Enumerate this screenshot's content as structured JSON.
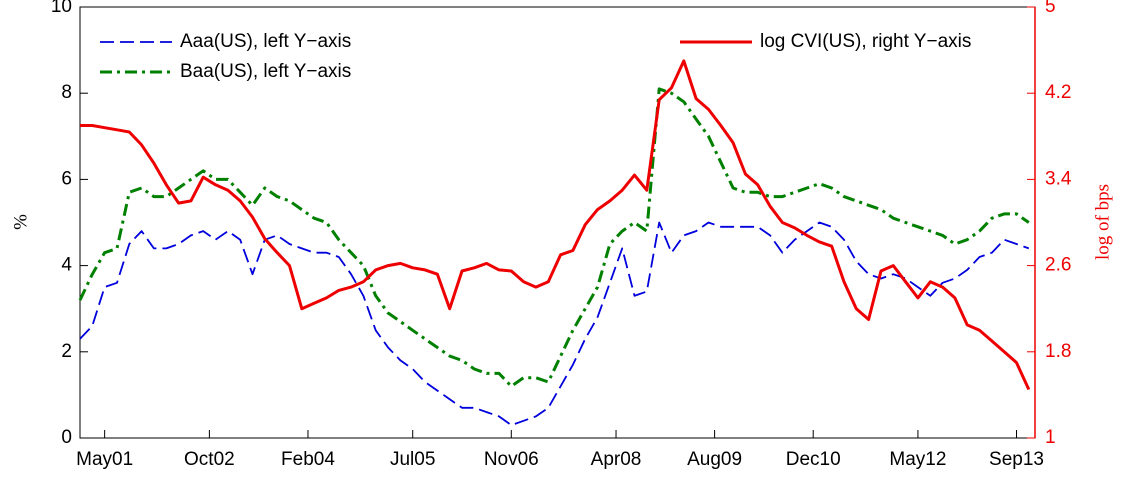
{
  "chart_data": {
    "type": "line",
    "x": [
      "2001-01",
      "2001-03",
      "2001-05",
      "2001-07",
      "2001-09",
      "2001-11",
      "2002-01",
      "2002-03",
      "2002-05",
      "2002-07",
      "2002-09",
      "2002-11",
      "2003-01",
      "2003-03",
      "2003-05",
      "2003-07",
      "2003-09",
      "2003-11",
      "2004-01",
      "2004-03",
      "2004-05",
      "2004-07",
      "2004-09",
      "2004-11",
      "2005-01",
      "2005-03",
      "2005-05",
      "2005-07",
      "2005-09",
      "2005-11",
      "2006-01",
      "2006-03",
      "2006-05",
      "2006-07",
      "2006-09",
      "2006-11",
      "2007-01",
      "2007-03",
      "2007-05",
      "2007-07",
      "2007-09",
      "2007-11",
      "2008-01",
      "2008-03",
      "2008-05",
      "2008-07",
      "2008-09",
      "2008-11",
      "2009-01",
      "2009-03",
      "2009-05",
      "2009-07",
      "2009-09",
      "2009-11",
      "2010-01",
      "2010-03",
      "2010-05",
      "2010-07",
      "2010-09",
      "2010-11",
      "2011-01",
      "2011-03",
      "2011-05",
      "2011-07",
      "2011-09",
      "2011-11",
      "2012-01",
      "2012-03",
      "2012-05",
      "2012-07",
      "2012-09",
      "2012-11",
      "2013-01",
      "2013-03",
      "2013-05",
      "2013-07",
      "2013-09",
      "2013-11"
    ],
    "series": [
      {
        "name": "Aaa(US), left Y−axis",
        "color": "#0000dd",
        "dash": "14 6",
        "width": 1.8,
        "values": [
          2.3,
          2.6,
          3.5,
          3.6,
          4.5,
          4.8,
          4.4,
          4.4,
          4.5,
          4.7,
          4.8,
          4.6,
          4.8,
          4.6,
          3.8,
          4.6,
          4.7,
          4.5,
          4.4,
          4.3,
          4.3,
          4.2,
          3.8,
          3.3,
          2.5,
          2.1,
          1.8,
          1.6,
          1.3,
          1.1,
          0.9,
          0.7,
          0.7,
          0.6,
          0.5,
          0.3,
          0.4,
          0.5,
          0.7,
          1.2,
          1.7,
          2.3,
          2.8,
          3.6,
          4.4,
          3.3,
          3.4,
          5.0,
          4.3,
          4.7,
          4.8,
          5.0,
          4.9,
          4.9,
          4.9,
          4.9,
          4.7,
          4.3,
          4.6,
          4.8,
          5.0,
          4.9,
          4.6,
          4.1,
          3.8,
          3.7,
          3.8,
          3.7,
          3.5,
          3.3,
          3.6,
          3.7,
          3.9,
          4.2,
          4.3,
          4.6,
          4.5,
          4.4
        ]
      },
      {
        "name": "Baa(US), left Y−axis",
        "color": "#008000",
        "dash": "12 5 3 5",
        "width": 3,
        "values": [
          3.2,
          3.8,
          4.3,
          4.4,
          5.7,
          5.8,
          5.6,
          5.6,
          5.8,
          6.0,
          6.2,
          6.0,
          6.0,
          5.7,
          5.4,
          5.8,
          5.6,
          5.5,
          5.3,
          5.1,
          5.0,
          4.6,
          4.3,
          4.0,
          3.3,
          2.9,
          2.7,
          2.5,
          2.3,
          2.1,
          1.9,
          1.8,
          1.6,
          1.5,
          1.5,
          1.2,
          1.4,
          1.4,
          1.3,
          1.9,
          2.5,
          3.0,
          3.5,
          4.5,
          4.8,
          5.0,
          4.8,
          8.1,
          8.0,
          7.8,
          7.4,
          7.0,
          6.4,
          5.8,
          5.7,
          5.7,
          5.6,
          5.6,
          5.7,
          5.8,
          5.9,
          5.8,
          5.6,
          5.5,
          5.4,
          5.3,
          5.1,
          5.0,
          4.9,
          4.8,
          4.7,
          4.5,
          4.6,
          4.8,
          5.1,
          5.2,
          5.2,
          5.0
        ]
      },
      {
        "name": "log CVI(US), right Y−axis",
        "color": "#ee0000",
        "dash": "none",
        "width": 3,
        "axis": "y2",
        "values": [
          3.9,
          3.9,
          3.88,
          3.86,
          3.84,
          3.72,
          3.55,
          3.35,
          3.18,
          3.2,
          3.42,
          3.35,
          3.3,
          3.2,
          3.05,
          2.85,
          2.72,
          2.6,
          2.2,
          2.25,
          2.3,
          2.37,
          2.4,
          2.45,
          2.56,
          2.6,
          2.62,
          2.58,
          2.56,
          2.52,
          2.2,
          2.55,
          2.58,
          2.62,
          2.56,
          2.55,
          2.45,
          2.4,
          2.45,
          2.7,
          2.74,
          2.98,
          3.12,
          3.2,
          3.3,
          3.44,
          3.3,
          4.14,
          4.25,
          4.5,
          4.15,
          4.05,
          3.9,
          3.74,
          3.45,
          3.35,
          3.15,
          3.0,
          2.95,
          2.88,
          2.82,
          2.78,
          2.45,
          2.2,
          2.1,
          2.55,
          2.6,
          2.45,
          2.3,
          2.45,
          2.4,
          2.3,
          2.05,
          2.0,
          1.9,
          1.8,
          1.7,
          1.45
        ]
      }
    ],
    "xlim": [
      "2001-01",
      "2013-12"
    ],
    "xticks": [
      {
        "value": "2001-05",
        "label": "May01"
      },
      {
        "value": "2002-10",
        "label": "Oct02"
      },
      {
        "value": "2004-02",
        "label": "Feb04"
      },
      {
        "value": "2005-07",
        "label": "Jul05"
      },
      {
        "value": "2006-11",
        "label": "Nov06"
      },
      {
        "value": "2008-04",
        "label": "Apr08"
      },
      {
        "value": "2009-08",
        "label": "Aug09"
      },
      {
        "value": "2010-12",
        "label": "Dec10"
      },
      {
        "value": "2012-05",
        "label": "May12"
      },
      {
        "value": "2013-09",
        "label": "Sep13"
      }
    ],
    "ylim": [
      0,
      10
    ],
    "yticks": [
      0,
      2,
      4,
      6,
      8,
      10
    ],
    "y2lim": [
      1,
      5
    ],
    "y2ticks": [
      1,
      1.8,
      2.6,
      3.4,
      4.2,
      5
    ],
    "ylabel": "%",
    "y2label": "log of bps",
    "y2color": "#ee0000"
  }
}
